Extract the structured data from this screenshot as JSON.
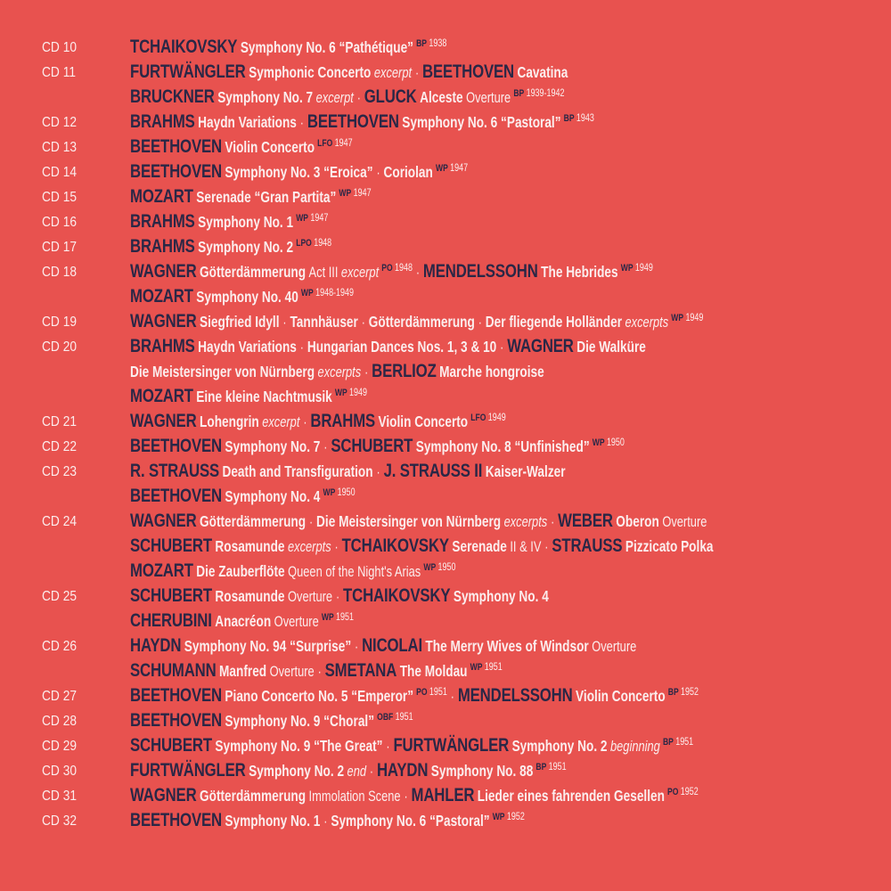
{
  "colors": {
    "background": "#e8524f",
    "composer": "#2a2746",
    "text": "#fbeeee"
  },
  "lines": [
    {
      "cd": "CD 10",
      "segs": [
        {
          "s": "c",
          "t": "TCHAIKOVSKY"
        },
        {
          "s": "w",
          "t": "Symphony No. 6 “Pathétique”"
        },
        {
          "s": "o",
          "t": "BP"
        },
        {
          "s": "y",
          "t": "1938"
        }
      ]
    },
    {
      "cd": "CD 11",
      "segs": [
        {
          "s": "c",
          "t": "FURTWÄNGLER"
        },
        {
          "s": "w",
          "t": "Symphonic Concerto"
        },
        {
          "s": "i",
          "t": "excerpt"
        },
        {
          "s": "d",
          "t": "·"
        },
        {
          "s": "c",
          "t": "BEETHOVEN"
        },
        {
          "s": "w",
          "t": "Cavatina"
        }
      ]
    },
    {
      "cd": "",
      "segs": [
        {
          "s": "c",
          "t": "BRUCKNER"
        },
        {
          "s": "w",
          "t": "Symphony No. 7"
        },
        {
          "s": "i",
          "t": "excerpt"
        },
        {
          "s": "d",
          "t": "·"
        },
        {
          "s": "c",
          "t": "GLUCK"
        },
        {
          "s": "w",
          "t": "Alceste"
        },
        {
          "s": "n",
          "t": "Overture"
        },
        {
          "s": "o",
          "t": "BP"
        },
        {
          "s": "y",
          "t": "1939-1942"
        }
      ]
    },
    {
      "cd": "CD 12",
      "segs": [
        {
          "s": "c",
          "t": "BRAHMS"
        },
        {
          "s": "w",
          "t": "Haydn Variations"
        },
        {
          "s": "d",
          "t": "·"
        },
        {
          "s": "c",
          "t": "BEETHOVEN"
        },
        {
          "s": "w",
          "t": "Symphony No. 6 “Pastoral”"
        },
        {
          "s": "o",
          "t": "BP"
        },
        {
          "s": "y",
          "t": "1943"
        }
      ]
    },
    {
      "cd": "CD 13",
      "segs": [
        {
          "s": "c",
          "t": "BEETHOVEN"
        },
        {
          "s": "w",
          "t": "Violin Concerto"
        },
        {
          "s": "o",
          "t": "LFO"
        },
        {
          "s": "y",
          "t": "1947"
        }
      ]
    },
    {
      "cd": "CD 14",
      "segs": [
        {
          "s": "c",
          "t": "BEETHOVEN"
        },
        {
          "s": "w",
          "t": "Symphony No. 3 “Eroica”"
        },
        {
          "s": "d",
          "t": "·"
        },
        {
          "s": "w",
          "t": "Coriolan"
        },
        {
          "s": "o",
          "t": "WP"
        },
        {
          "s": "y",
          "t": "1947"
        }
      ]
    },
    {
      "cd": "CD 15",
      "segs": [
        {
          "s": "c",
          "t": "MOZART"
        },
        {
          "s": "w",
          "t": "Serenade “Gran Partita”"
        },
        {
          "s": "o",
          "t": "WP"
        },
        {
          "s": "y",
          "t": "1947"
        }
      ]
    },
    {
      "cd": "CD 16",
      "segs": [
        {
          "s": "c",
          "t": "BRAHMS"
        },
        {
          "s": "w",
          "t": "Symphony No. 1"
        },
        {
          "s": "o",
          "t": "WP"
        },
        {
          "s": "y",
          "t": "1947"
        }
      ]
    },
    {
      "cd": "CD 17",
      "segs": [
        {
          "s": "c",
          "t": "BRAHMS"
        },
        {
          "s": "w",
          "t": "Symphony No. 2"
        },
        {
          "s": "o",
          "t": "LPO"
        },
        {
          "s": "y",
          "t": "1948"
        }
      ]
    },
    {
      "cd": "CD 18",
      "segs": [
        {
          "s": "c",
          "t": "WAGNER"
        },
        {
          "s": "w",
          "t": "Götterdämmerung"
        },
        {
          "s": "n",
          "t": "Act III"
        },
        {
          "s": "i",
          "t": "excerpt"
        },
        {
          "s": "o",
          "t": "PO"
        },
        {
          "s": "y",
          "t": "1948"
        },
        {
          "s": "d",
          "t": "·"
        },
        {
          "s": "c",
          "t": "MENDELSSOHN"
        },
        {
          "s": "w",
          "t": "The Hebrides"
        },
        {
          "s": "o",
          "t": "WP"
        },
        {
          "s": "y",
          "t": "1949"
        }
      ]
    },
    {
      "cd": "",
      "segs": [
        {
          "s": "c",
          "t": "MOZART"
        },
        {
          "s": "w",
          "t": "Symphony No. 40"
        },
        {
          "s": "o",
          "t": "WP"
        },
        {
          "s": "y",
          "t": "1948-1949"
        }
      ]
    },
    {
      "cd": "CD 19",
      "segs": [
        {
          "s": "c",
          "t": "WAGNER"
        },
        {
          "s": "w",
          "t": "Siegfried Idyll"
        },
        {
          "s": "d",
          "t": "·"
        },
        {
          "s": "w",
          "t": "Tannhäuser"
        },
        {
          "s": "d",
          "t": "·"
        },
        {
          "s": "w",
          "t": "Götterdämmerung"
        },
        {
          "s": "d",
          "t": "·"
        },
        {
          "s": "w",
          "t": "Der fliegende Holländer"
        },
        {
          "s": "i",
          "t": "excerpts"
        },
        {
          "s": "o",
          "t": "WP"
        },
        {
          "s": "y",
          "t": "1949"
        }
      ]
    },
    {
      "cd": "CD 20",
      "segs": [
        {
          "s": "c",
          "t": "BRAHMS"
        },
        {
          "s": "w",
          "t": "Haydn Variations"
        },
        {
          "s": "d",
          "t": "·"
        },
        {
          "s": "w",
          "t": "Hungarian Dances Nos. 1, 3 & 10"
        },
        {
          "s": "d",
          "t": "·"
        },
        {
          "s": "c",
          "t": "WAGNER"
        },
        {
          "s": "w",
          "t": "Die Walküre"
        }
      ]
    },
    {
      "cd": "",
      "segs": [
        {
          "s": "w",
          "t": "Die Meistersinger von Nürnberg"
        },
        {
          "s": "i",
          "t": "excerpts"
        },
        {
          "s": "d",
          "t": "·"
        },
        {
          "s": "c",
          "t": "BERLIOZ"
        },
        {
          "s": "w",
          "t": "Marche hongroise"
        }
      ]
    },
    {
      "cd": "",
      "segs": [
        {
          "s": "c",
          "t": "MOZART"
        },
        {
          "s": "w",
          "t": "Eine kleine Nachtmusik"
        },
        {
          "s": "o",
          "t": "WP"
        },
        {
          "s": "y",
          "t": "1949"
        }
      ]
    },
    {
      "cd": "CD 21",
      "segs": [
        {
          "s": "c",
          "t": "WAGNER"
        },
        {
          "s": "w",
          "t": "Lohengrin"
        },
        {
          "s": "i",
          "t": "excerpt"
        },
        {
          "s": "d",
          "t": "·"
        },
        {
          "s": "c",
          "t": "BRAHMS"
        },
        {
          "s": "w",
          "t": "Violin Concerto"
        },
        {
          "s": "o",
          "t": "LFO"
        },
        {
          "s": "y",
          "t": "1949"
        }
      ]
    },
    {
      "cd": "CD 22",
      "segs": [
        {
          "s": "c",
          "t": "BEETHOVEN"
        },
        {
          "s": "w",
          "t": "Symphony No. 7"
        },
        {
          "s": "d",
          "t": "·"
        },
        {
          "s": "c",
          "t": "SCHUBERT"
        },
        {
          "s": "w",
          "t": "Symphony No. 8 “Unfinished”"
        },
        {
          "s": "o",
          "t": "WP"
        },
        {
          "s": "y",
          "t": "1950"
        }
      ]
    },
    {
      "cd": "CD 23",
      "segs": [
        {
          "s": "c",
          "t": "R. STRAUSS"
        },
        {
          "s": "w",
          "t": "Death and Transfiguration"
        },
        {
          "s": "d",
          "t": "·"
        },
        {
          "s": "c",
          "t": "J. STRAUSS II"
        },
        {
          "s": "w",
          "t": "Kaiser-Walzer"
        }
      ]
    },
    {
      "cd": "",
      "segs": [
        {
          "s": "c",
          "t": "BEETHOVEN"
        },
        {
          "s": "w",
          "t": "Symphony No. 4"
        },
        {
          "s": "o",
          "t": "WP"
        },
        {
          "s": "y",
          "t": "1950"
        }
      ]
    },
    {
      "cd": "CD 24",
      "segs": [
        {
          "s": "c",
          "t": "WAGNER"
        },
        {
          "s": "w",
          "t": "Götterdämmerung"
        },
        {
          "s": "d",
          "t": "·"
        },
        {
          "s": "w",
          "t": "Die Meistersinger von Nürnberg"
        },
        {
          "s": "i",
          "t": "excerpts"
        },
        {
          "s": "d",
          "t": "·"
        },
        {
          "s": "c",
          "t": "WEBER"
        },
        {
          "s": "w",
          "t": "Oberon"
        },
        {
          "s": "n",
          "t": "Overture"
        }
      ]
    },
    {
      "cd": "",
      "segs": [
        {
          "s": "c",
          "t": "SCHUBERT"
        },
        {
          "s": "w",
          "t": "Rosamunde"
        },
        {
          "s": "i",
          "t": "excerpts"
        },
        {
          "s": "d",
          "t": "·"
        },
        {
          "s": "c",
          "t": "TCHAIKOVSKY"
        },
        {
          "s": "w",
          "t": "Serenade"
        },
        {
          "s": "n",
          "t": "II & IV"
        },
        {
          "s": "d",
          "t": "·"
        },
        {
          "s": "c",
          "t": "STRAUSS"
        },
        {
          "s": "w",
          "t": "Pizzicato Polka"
        }
      ]
    },
    {
      "cd": "",
      "segs": [
        {
          "s": "c",
          "t": "MOZART"
        },
        {
          "s": "w",
          "t": "Die Zauberflöte"
        },
        {
          "s": "n",
          "t": "Queen of the Night's Arias"
        },
        {
          "s": "o",
          "t": "WP"
        },
        {
          "s": "y",
          "t": "1950"
        }
      ]
    },
    {
      "cd": "CD 25",
      "segs": [
        {
          "s": "c",
          "t": "SCHUBERT"
        },
        {
          "s": "w",
          "t": "Rosamunde"
        },
        {
          "s": "n",
          "t": "Overture"
        },
        {
          "s": "d",
          "t": "·"
        },
        {
          "s": "c",
          "t": "TCHAIKOVSKY"
        },
        {
          "s": "w",
          "t": "Symphony No. 4"
        }
      ]
    },
    {
      "cd": "",
      "segs": [
        {
          "s": "c",
          "t": "CHERUBINI"
        },
        {
          "s": "w",
          "t": "Anacréon"
        },
        {
          "s": "n",
          "t": "Overture"
        },
        {
          "s": "o",
          "t": "WP"
        },
        {
          "s": "y",
          "t": "1951"
        }
      ]
    },
    {
      "cd": "CD 26",
      "segs": [
        {
          "s": "c",
          "t": "HAYDN"
        },
        {
          "s": "w",
          "t": "Symphony No. 94 “Surprise”"
        },
        {
          "s": "d",
          "t": "·"
        },
        {
          "s": "c",
          "t": "NICOLAI"
        },
        {
          "s": "w",
          "t": "The Merry Wives of Windsor"
        },
        {
          "s": "n",
          "t": "Overture"
        }
      ]
    },
    {
      "cd": "",
      "segs": [
        {
          "s": "c",
          "t": "SCHUMANN"
        },
        {
          "s": "w",
          "t": "Manfred"
        },
        {
          "s": "n",
          "t": "Overture"
        },
        {
          "s": "d",
          "t": "·"
        },
        {
          "s": "c",
          "t": "SMETANA"
        },
        {
          "s": "w",
          "t": "The Moldau"
        },
        {
          "s": "o",
          "t": "WP"
        },
        {
          "s": "y",
          "t": "1951"
        }
      ]
    },
    {
      "cd": "CD 27",
      "segs": [
        {
          "s": "c",
          "t": "BEETHOVEN"
        },
        {
          "s": "w",
          "t": "Piano Concerto No. 5 “Emperor”"
        },
        {
          "s": "o",
          "t": "PO"
        },
        {
          "s": "y",
          "t": "1951"
        },
        {
          "s": "d",
          "t": "·"
        },
        {
          "s": "c",
          "t": "MENDELSSOHN"
        },
        {
          "s": "w",
          "t": "Violin Concerto"
        },
        {
          "s": "o",
          "t": "BP"
        },
        {
          "s": "y",
          "t": "1952"
        }
      ]
    },
    {
      "cd": "CD 28",
      "segs": [
        {
          "s": "c",
          "t": "BEETHOVEN"
        },
        {
          "s": "w",
          "t": "Symphony No. 9 “Choral”"
        },
        {
          "s": "o",
          "t": "OBF"
        },
        {
          "s": "y",
          "t": "1951"
        }
      ]
    },
    {
      "cd": "CD 29",
      "segs": [
        {
          "s": "c",
          "t": "SCHUBERT"
        },
        {
          "s": "w",
          "t": "Symphony No. 9 “The Great”"
        },
        {
          "s": "d",
          "t": "·"
        },
        {
          "s": "c",
          "t": "FURTWÄNGLER"
        },
        {
          "s": "w",
          "t": "Symphony No. 2"
        },
        {
          "s": "i",
          "t": "beginning"
        },
        {
          "s": "o",
          "t": "BP"
        },
        {
          "s": "y",
          "t": "1951"
        }
      ]
    },
    {
      "cd": "CD 30",
      "segs": [
        {
          "s": "c",
          "t": "FURTWÄNGLER"
        },
        {
          "s": "w",
          "t": "Symphony No. 2"
        },
        {
          "s": "i",
          "t": "end"
        },
        {
          "s": "d",
          "t": "·"
        },
        {
          "s": "c",
          "t": "HAYDN"
        },
        {
          "s": "w",
          "t": "Symphony No. 88"
        },
        {
          "s": "o",
          "t": "BP"
        },
        {
          "s": "y",
          "t": "1951"
        }
      ]
    },
    {
      "cd": "CD 31",
      "segs": [
        {
          "s": "c",
          "t": "WAGNER"
        },
        {
          "s": "w",
          "t": "Götterdämmerung"
        },
        {
          "s": "n",
          "t": "Immolation Scene"
        },
        {
          "s": "d",
          "t": "·"
        },
        {
          "s": "c",
          "t": "MAHLER"
        },
        {
          "s": "w",
          "t": "Lieder eines fahrenden Gesellen"
        },
        {
          "s": "o",
          "t": "PO"
        },
        {
          "s": "y",
          "t": "1952"
        }
      ]
    },
    {
      "cd": "CD 32",
      "segs": [
        {
          "s": "c",
          "t": "BEETHOVEN"
        },
        {
          "s": "w",
          "t": "Symphony No. 1"
        },
        {
          "s": "d",
          "t": "·"
        },
        {
          "s": "w",
          "t": "Symphony No. 6 “Pastoral”"
        },
        {
          "s": "o",
          "t": "WP"
        },
        {
          "s": "y",
          "t": "1952"
        }
      ]
    }
  ]
}
